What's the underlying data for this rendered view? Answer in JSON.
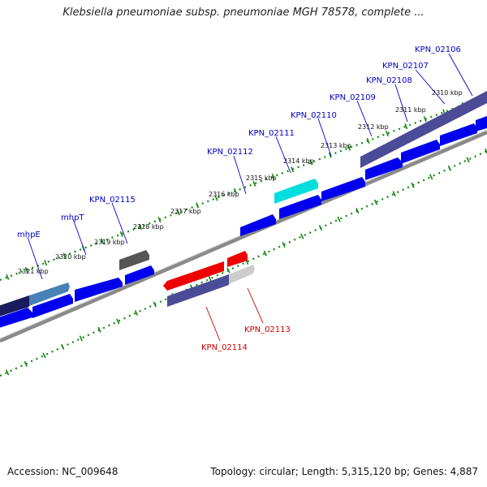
{
  "title": "Klebsiella pneumoniae subsp. pneumoniae MGH 78578, complete ...",
  "footer": {
    "accession": "Accession: NC_009648",
    "topology": "Topology: circular; Length: 5,315,120 bp; Genes: 4,887"
  },
  "colors": {
    "forward_gene": "#0000ee",
    "selected_gene": "#00dddd",
    "reverse_red": "#ee0000",
    "reverse_grey": "#cccccc",
    "purple_gene": "#4b4b98",
    "dark_gene": "#222266",
    "steel_gene": "#4682b4",
    "forward_label": "#0000c8",
    "reverse_label": "#cc0000",
    "tick": "#118811",
    "backbone": "#888888"
  },
  "scale": {
    "unit": "kbp",
    "ticks": [
      "2310 kbp",
      "2311 kbp",
      "2312 kbp",
      "2313 kbp",
      "2314 kbp",
      "2315 kbp",
      "2316 kbp",
      "2317 kbp",
      "2318 kbp",
      "2319 kbp",
      "2320 kbp",
      "2321 kbp"
    ]
  },
  "forward_labels": [
    "KPN_02106",
    "KPN_02107",
    "KPN_02108",
    "KPN_02109",
    "KPN_02110",
    "KPN_02111",
    "KPN_02112",
    "KPN_02115",
    "mhpT",
    "mhpE"
  ],
  "reverse_labels": [
    "KPN_02113",
    "KPN_02114"
  ]
}
